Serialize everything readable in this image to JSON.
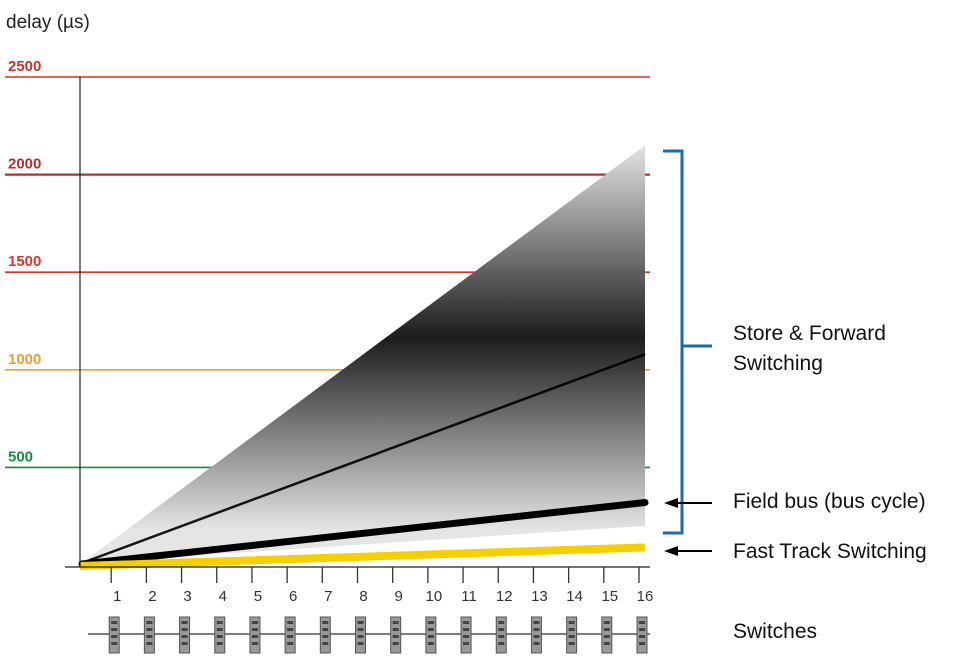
{
  "chart_data": {
    "type": "area",
    "ylabel": "delay (µs)",
    "xlabel": "Switches",
    "ylim": [
      0,
      2500
    ],
    "y_ticks": [
      {
        "value": 2500,
        "label": "2500",
        "color": "#c0392b"
      },
      {
        "value": 2000,
        "label": "2000",
        "color": "#b03030"
      },
      {
        "value": 1500,
        "label": "1500",
        "color": "#d9342b"
      },
      {
        "value": 1000,
        "label": "1000",
        "color": "#e8a030"
      },
      {
        "value": 500,
        "label": "500",
        "color": "#1a8a3a"
      }
    ],
    "categories": [
      "1",
      "2",
      "3",
      "4",
      "5",
      "6",
      "7",
      "8",
      "9",
      "10",
      "11",
      "12",
      "13",
      "14",
      "15",
      "16"
    ],
    "series": [
      {
        "name": "Store & Forward Switching",
        "x": [
          0,
          16
        ],
        "upper": [
          0,
          2150
        ],
        "lower": [
          0,
          200
        ],
        "center": [
          0,
          1080
        ],
        "color": "#000000"
      },
      {
        "name": "Field bus (bus cycle)",
        "x": [
          0,
          16
        ],
        "values": [
          0,
          320
        ],
        "color": "#000000"
      },
      {
        "name": "Fast Track Switching",
        "x": [
          0,
          16
        ],
        "values": [
          0,
          90
        ],
        "color": "#f5d000"
      }
    ],
    "grid": false
  },
  "annotations": {
    "store_forward": "Store & Forward Switching",
    "field_bus": "Field bus (bus cycle)",
    "fast_track": "Fast Track Switching",
    "switches": "Switches"
  },
  "colors": {
    "bracket": "#1a6f9e",
    "arrow": "#000000"
  }
}
